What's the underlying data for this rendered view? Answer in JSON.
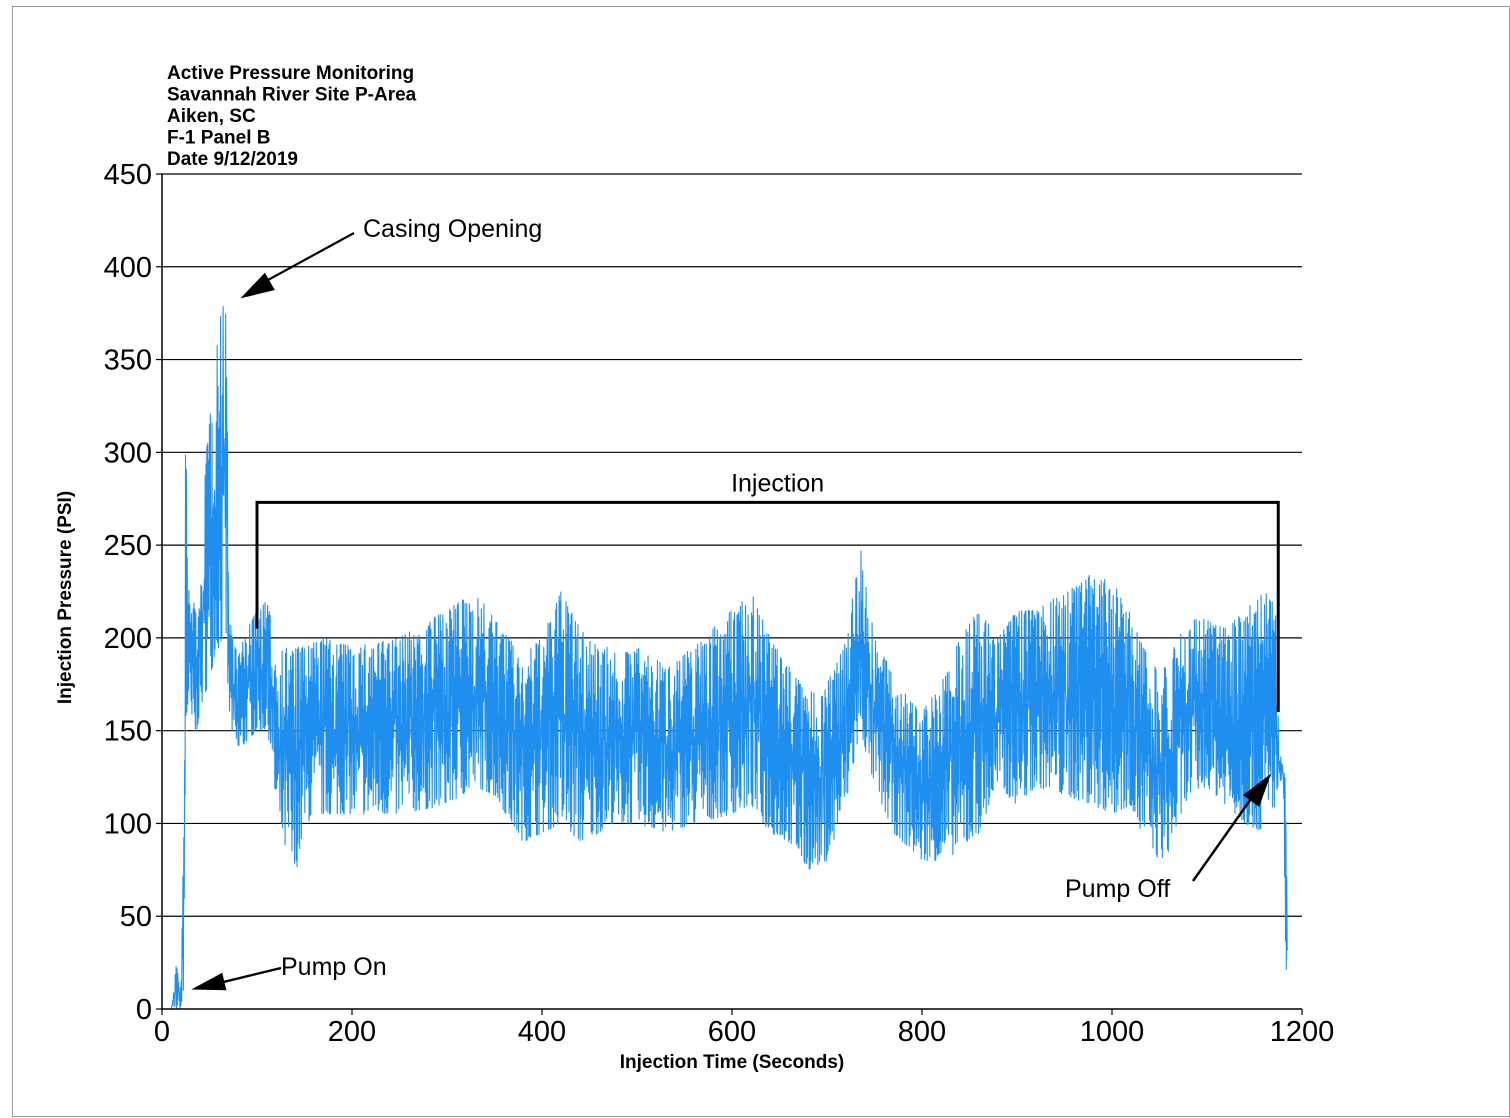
{
  "chart_data": {
    "type": "line",
    "header_lines": [
      "Active Pressure Monitoring",
      "Savannah River Site P-Area",
      "Aiken, SC",
      "F-1  Panel B",
      "Date 9/12/2019"
    ],
    "title": "",
    "xlabel": "Injection Time (Seconds)",
    "ylabel": "Injection Pressure (PSI)",
    "xlim": [
      0,
      1200
    ],
    "ylim": [
      0,
      450
    ],
    "x_ticks": [
      "0",
      "200",
      "400",
      "600",
      "800",
      "1000",
      "1200"
    ],
    "y_ticks": [
      "0",
      "50",
      "100",
      "150",
      "200",
      "250",
      "300",
      "350",
      "400",
      "450"
    ],
    "grid": "horizontal",
    "series_color": "#1f8fef",
    "series": [
      {
        "envelope_x": [
          0,
          10,
          15,
          20,
          23,
          25,
          27,
          30,
          35,
          40,
          45,
          50,
          55,
          60,
          65,
          68,
          70,
          75,
          80,
          90,
          100,
          110,
          115,
          120,
          130,
          140,
          150,
          170,
          200,
          250,
          300,
          330,
          350,
          380,
          400,
          420,
          440,
          460,
          470,
          480,
          500,
          530,
          560,
          600,
          620,
          640,
          660,
          680,
          700,
          720,
          735,
          750,
          770,
          790,
          800,
          820,
          840,
          860,
          880,
          900,
          920,
          950,
          980,
          1000,
          1020,
          1030,
          1050,
          1060,
          1080,
          1100,
          1120,
          1140,
          1160,
          1172,
          1176,
          1180,
          1183,
          1185
        ],
        "envelope_low": [
          0,
          0,
          0,
          0,
          5,
          140,
          160,
          150,
          145,
          160,
          170,
          175,
          190,
          195,
          200,
          195,
          160,
          145,
          135,
          145,
          150,
          150,
          140,
          105,
          85,
          70,
          100,
          105,
          105,
          105,
          110,
          120,
          115,
          90,
          95,
          100,
          90,
          95,
          100,
          100,
          100,
          95,
          100,
          105,
          110,
          95,
          90,
          75,
          80,
          110,
          150,
          120,
          95,
          85,
          80,
          80,
          85,
          95,
          120,
          110,
          120,
          115,
          110,
          105,
          110,
          95,
          80,
          85,
          115,
          120,
          110,
          100,
          95,
          110,
          120,
          125,
          20,
          10
        ],
        "envelope_high": [
          0,
          0,
          25,
          10,
          100,
          330,
          230,
          225,
          220,
          215,
          290,
          320,
          350,
          370,
          380,
          400,
          220,
          200,
          190,
          205,
          215,
          220,
          210,
          190,
          195,
          195,
          195,
          200,
          195,
          200,
          215,
          225,
          210,
          190,
          200,
          225,
          205,
          195,
          195,
          190,
          195,
          185,
          195,
          215,
          225,
          200,
          185,
          170,
          175,
          200,
          250,
          200,
          180,
          165,
          160,
          175,
          200,
          215,
          200,
          215,
          215,
          225,
          235,
          230,
          215,
          200,
          180,
          190,
          210,
          210,
          205,
          215,
          225,
          220,
          140,
          130,
          125,
          40
        ]
      }
    ],
    "annotations": [
      {
        "label": "Casing Opening",
        "x": 72,
        "y": 383
      },
      {
        "label": "Injection",
        "x_start": 100,
        "x_end": 1175,
        "y": 273
      },
      {
        "label": "Pump On",
        "x": 35,
        "y": 10
      },
      {
        "label": "Pump Off",
        "x": 1178,
        "y": 128
      }
    ]
  }
}
